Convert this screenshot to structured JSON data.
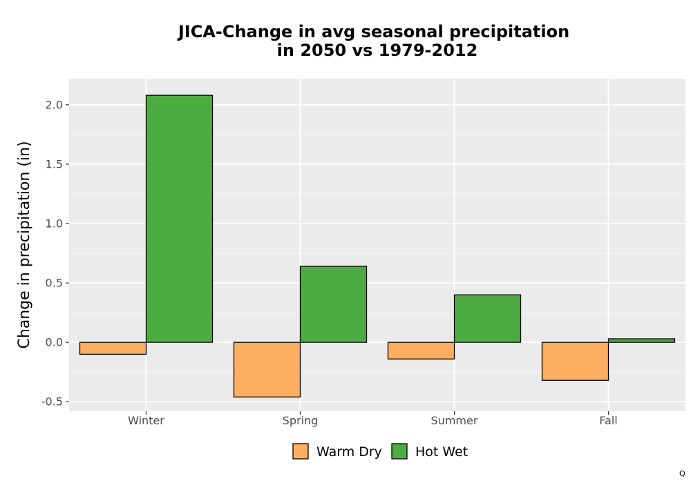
{
  "chart_data": {
    "type": "bar",
    "title": [
      "JICA-Change in avg seasonal precipitation",
      "in 2050 vs 1979-2012"
    ],
    "xlabel": "",
    "ylabel": "Change in precipitation (in)",
    "categories": [
      "Winter",
      "Spring",
      "Summer",
      "Fall"
    ],
    "series": [
      {
        "name": "Warm Dry",
        "color": "#fdae61",
        "values": [
          -0.1,
          -0.46,
          -0.14,
          -0.32
        ]
      },
      {
        "name": "Hot Wet",
        "color": "#4dac41",
        "values": [
          2.08,
          0.64,
          0.4,
          0.03
        ]
      }
    ],
    "ylim": [
      -0.58,
      2.22
    ],
    "yticks": [
      -0.5,
      0.0,
      0.5,
      1.0,
      1.5,
      2.0
    ],
    "ytick_labels": [
      "-0.5",
      "0.0",
      "0.5",
      "1.0",
      "1.5",
      "2.0"
    ],
    "grid": true,
    "legend_position": "bottom",
    "panel_color": "#ebebeb"
  },
  "corner_mark": "Q"
}
